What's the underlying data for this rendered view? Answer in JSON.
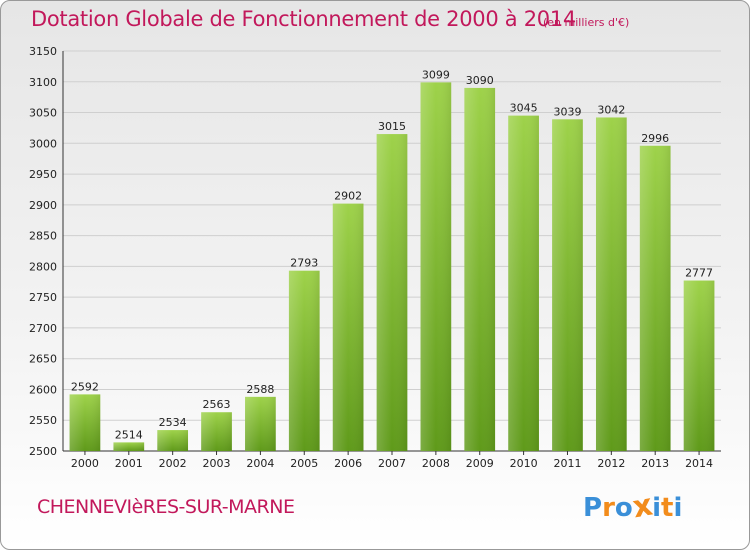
{
  "title": "Dotation Globale de Fonctionnement de 2000 à 2014",
  "subtitle": "(en milliers d'€)",
  "commune": "CHENNEVIèRES-SUR-MARNE",
  "logo": {
    "text": "Proxiti",
    "letters": [
      "P",
      "r",
      "o",
      "x",
      "i",
      "t",
      "i"
    ],
    "colors": [
      "#3a8fd8",
      "#f28c1c",
      "#3a8fd8",
      "#f28c1c",
      "#3a8fd8",
      "#f28c1c",
      "#3a8fd8"
    ]
  },
  "colors": {
    "title": "#c2185b",
    "bar_top": "#9ed24a",
    "bar_bottom": "#5f9a1a",
    "grid": "#cfcfcf"
  },
  "chart_data": {
    "type": "bar",
    "title": "Dotation Globale de Fonctionnement de 2000 à 2014",
    "subtitle": "(en milliers d'€)",
    "xlabel": "",
    "ylabel": "",
    "categories": [
      "2000",
      "2001",
      "2002",
      "2003",
      "2004",
      "2005",
      "2006",
      "2007",
      "2008",
      "2009",
      "2010",
      "2011",
      "2012",
      "2013",
      "2014"
    ],
    "values": [
      2592,
      2514,
      2534,
      2563,
      2588,
      2793,
      2902,
      3015,
      3099,
      3090,
      3045,
      3039,
      3042,
      2996,
      2777
    ],
    "ylim": [
      2500,
      3150
    ],
    "yticks": [
      2500,
      2550,
      2600,
      2650,
      2700,
      2750,
      2800,
      2850,
      2900,
      2950,
      3000,
      3050,
      3100,
      3150
    ],
    "grid": true,
    "legend": "none"
  }
}
